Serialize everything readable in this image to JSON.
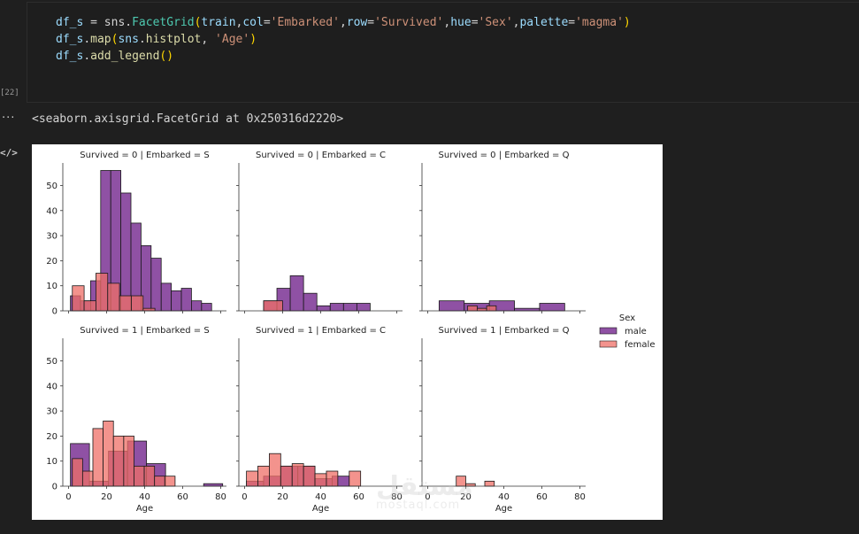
{
  "cell": {
    "execution_count": "[22]",
    "code_lines": [
      [
        {
          "t": "df_s ",
          "c": "#9cdcfe"
        },
        {
          "t": "= sns.",
          "c": "#d4d4d4"
        },
        {
          "t": "FacetGrid",
          "c": "#4ec9b0"
        },
        {
          "t": "(",
          "c": "#ffd700"
        },
        {
          "t": "train",
          "c": "#9cdcfe"
        },
        {
          "t": ",",
          "c": "#d4d4d4"
        },
        {
          "t": "col",
          "c": "#9cdcfe"
        },
        {
          "t": "=",
          "c": "#d4d4d4"
        },
        {
          "t": "'Embarked'",
          "c": "#ce9178"
        },
        {
          "t": ",",
          "c": "#d4d4d4"
        },
        {
          "t": "row",
          "c": "#9cdcfe"
        },
        {
          "t": "=",
          "c": "#d4d4d4"
        },
        {
          "t": "'Survived'",
          "c": "#ce9178"
        },
        {
          "t": ",",
          "c": "#d4d4d4"
        },
        {
          "t": "hue",
          "c": "#9cdcfe"
        },
        {
          "t": "=",
          "c": "#d4d4d4"
        },
        {
          "t": "'Sex'",
          "c": "#ce9178"
        },
        {
          "t": ",",
          "c": "#d4d4d4"
        },
        {
          "t": "palette",
          "c": "#9cdcfe"
        },
        {
          "t": "=",
          "c": "#d4d4d4"
        },
        {
          "t": "'magma'",
          "c": "#ce9178"
        },
        {
          "t": ")",
          "c": "#ffd700"
        }
      ],
      [
        {
          "t": "df_s",
          "c": "#9cdcfe"
        },
        {
          "t": ".",
          "c": "#d4d4d4"
        },
        {
          "t": "map",
          "c": "#dcdcaa"
        },
        {
          "t": "(",
          "c": "#ffd700"
        },
        {
          "t": "sns",
          "c": "#9cdcfe"
        },
        {
          "t": ".",
          "c": "#d4d4d4"
        },
        {
          "t": "histplot",
          "c": "#dcdcaa"
        },
        {
          "t": ", ",
          "c": "#d4d4d4"
        },
        {
          "t": "'Age'",
          "c": "#ce9178"
        },
        {
          "t": ")",
          "c": "#ffd700"
        }
      ],
      [
        {
          "t": "df_s",
          "c": "#9cdcfe"
        },
        {
          "t": ".",
          "c": "#d4d4d4"
        },
        {
          "t": "add_legend",
          "c": "#dcdcaa"
        },
        {
          "t": "()",
          "c": "#ffd700"
        }
      ]
    ]
  },
  "output": {
    "dots": "···",
    "code_icon": "</>",
    "text": "<seaborn.axisgrid.FacetGrid at 0x250316d2220>"
  },
  "watermark": {
    "logo": "مستقل",
    "url": "mostaql.com"
  },
  "colors": {
    "male": "#7b3294",
    "female": "#ef6f67",
    "edge": "#1a1a1a"
  },
  "chart_data": {
    "type": "bar",
    "subtype": "histogram-facet-grid",
    "xlabel": "Age",
    "x_ticks": [
      0,
      20,
      40,
      60,
      80
    ],
    "y_ticks": [
      0,
      10,
      20,
      30,
      40,
      50
    ],
    "xlim": [
      -3,
      83
    ],
    "ylim": [
      0,
      59
    ],
    "legend": {
      "title": "Sex",
      "placement": "right",
      "entries": [
        "male",
        "female"
      ]
    },
    "panels": [
      {
        "title": "Survived = 0 | Embarked = S",
        "male": {
          "x0": 1,
          "width": 5.3,
          "counts": [
            6,
            4,
            12,
            56,
            56,
            47,
            35,
            26,
            21,
            11,
            8,
            9,
            4,
            3
          ]
        },
        "female": {
          "x0": 2,
          "width": 6.2,
          "counts": [
            10,
            4,
            15,
            11,
            6,
            6,
            1
          ]
        }
      },
      {
        "title": "Survived = 0 | Embarked = C",
        "male": {
          "x0": 10,
          "width": 7,
          "counts": [
            4,
            9,
            14,
            7,
            2,
            3,
            3,
            3
          ]
        },
        "female": {
          "x0": 10,
          "width": 10,
          "counts": [
            4,
            0,
            0,
            0,
            0
          ]
        }
      },
      {
        "title": "Survived = 0 | Embarked = Q",
        "male": {
          "x0": 6,
          "width": 13.2,
          "counts": [
            4,
            3,
            4,
            1,
            3
          ]
        },
        "female": {
          "x0": 21,
          "width": 5,
          "counts": [
            2,
            1,
            2
          ]
        }
      },
      {
        "title": "Survived = 1 | Embarked = S",
        "male": {
          "x0": 1,
          "width": 10,
          "counts": [
            17,
            2,
            14,
            18,
            9,
            0,
            0,
            1
          ]
        },
        "female": {
          "x0": 2,
          "width": 5.4,
          "counts": [
            11,
            6,
            23,
            26,
            20,
            20,
            8,
            8,
            4,
            4
          ]
        }
      },
      {
        "title": "Survived = 1 | Embarked = C",
        "male": {
          "x0": 1,
          "width": 9,
          "counts": [
            2,
            4,
            8,
            8,
            3,
            4
          ]
        },
        "female": {
          "x0": 1,
          "width": 6,
          "counts": [
            6,
            8,
            13,
            8,
            9,
            8,
            5,
            6,
            0,
            6
          ]
        }
      },
      {
        "title": "Survived = 1 | Embarked = Q",
        "male": {
          "x0": 0,
          "width": 0,
          "counts": []
        },
        "female": {
          "x0": 15,
          "width": 5,
          "counts": [
            4,
            1,
            0,
            2
          ]
        }
      }
    ]
  }
}
